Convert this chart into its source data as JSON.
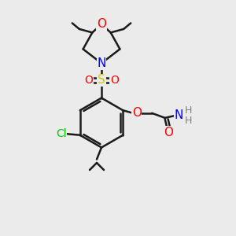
{
  "background_color": "#ebebeb",
  "atom_colors": {
    "C": "#1a1a1a",
    "H": "#808080",
    "N": "#0000ff",
    "O": "#ff0000",
    "S": "#cccc00",
    "Cl": "#00cc00"
  },
  "bond_color": "#1a1a1a",
  "bond_lw": 1.8
}
